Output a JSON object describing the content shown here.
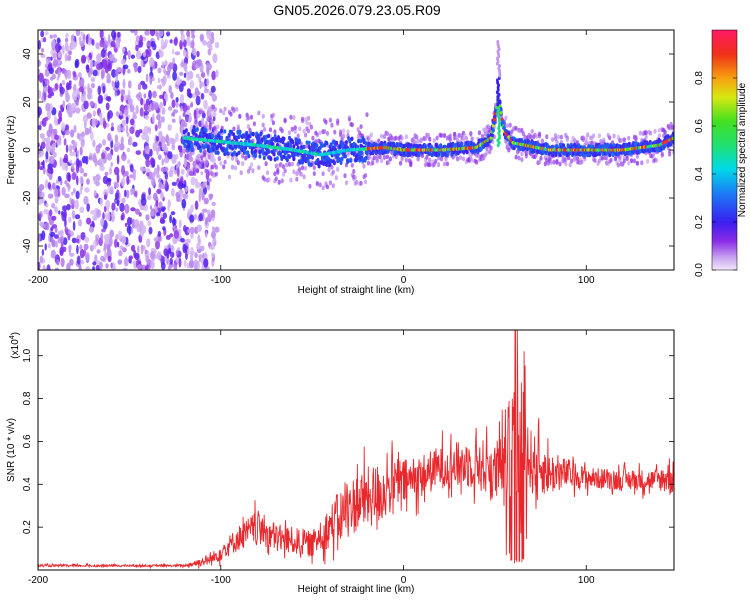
{
  "title": "GN05.2026.079.23.05.R09",
  "chart_data": [
    {
      "type": "heatmap",
      "name": "spectrogram",
      "xlabel": "Height of straight line (km)",
      "ylabel": "Frequency (Hz)",
      "xlim": [
        -200,
        148
      ],
      "ylim": [
        -50,
        50
      ],
      "xticks": [
        -200,
        -100,
        0,
        100
      ],
      "yticks": [
        -40,
        -20,
        0,
        20,
        40
      ],
      "colorbar": {
        "label": "Normalized spectral amplitude",
        "range": [
          0,
          1
        ],
        "ticks": [
          "0.0",
          "0.2",
          "0.4",
          "0.6",
          "0.8"
        ]
      },
      "noise_region_x": [
        -200,
        -108
      ],
      "ridge_x": [
        -120,
        -80,
        -60,
        -45,
        -30,
        -10,
        0,
        20,
        40,
        48,
        52,
        55,
        60,
        80,
        100,
        120,
        140,
        148
      ],
      "ridge_freq": [
        5,
        2,
        0,
        -2,
        0,
        1,
        0,
        0,
        1,
        5,
        22,
        8,
        3,
        0,
        0,
        0,
        2,
        5
      ],
      "peak": {
        "x": 52,
        "freq": 22
      }
    },
    {
      "type": "line",
      "name": "snr",
      "xlabel": "Height of straight line (km)",
      "ylabel": "SNR (10 * v/v)",
      "yscale_label": "(x10",
      "yscale_exp": "4",
      "xlim": [
        -200,
        148
      ],
      "ylim": [
        0,
        1.12
      ],
      "xticks": [
        -200,
        -100,
        0,
        100
      ],
      "yticks": [
        0.2,
        0.4,
        0.6,
        0.8,
        1.0
      ],
      "envelope_x": [
        -200,
        -120,
        -105,
        -90,
        -80,
        -70,
        -50,
        -35,
        -25,
        -15,
        -5,
        5,
        20,
        40,
        50,
        55,
        60,
        62,
        65,
        70,
        80,
        90,
        100,
        120,
        140,
        148
      ],
      "envelope_y": [
        0.02,
        0.02,
        0.05,
        0.15,
        0.2,
        0.15,
        0.12,
        0.25,
        0.32,
        0.35,
        0.4,
        0.42,
        0.48,
        0.5,
        0.45,
        0.5,
        0.55,
        0.75,
        0.6,
        0.5,
        0.45,
        0.45,
        0.43,
        0.42,
        0.42,
        0.45
      ],
      "noise_amp": [
        0.005,
        0.005,
        0.03,
        0.06,
        0.08,
        0.07,
        0.06,
        0.12,
        0.14,
        0.15,
        0.12,
        0.1,
        0.1,
        0.12,
        0.15,
        0.15,
        0.25,
        0.5,
        0.3,
        0.15,
        0.1,
        0.07,
        0.05,
        0.05,
        0.05,
        0.12
      ],
      "spike": {
        "x": 61,
        "y": 1.12
      },
      "color": "#e8282d"
    }
  ]
}
